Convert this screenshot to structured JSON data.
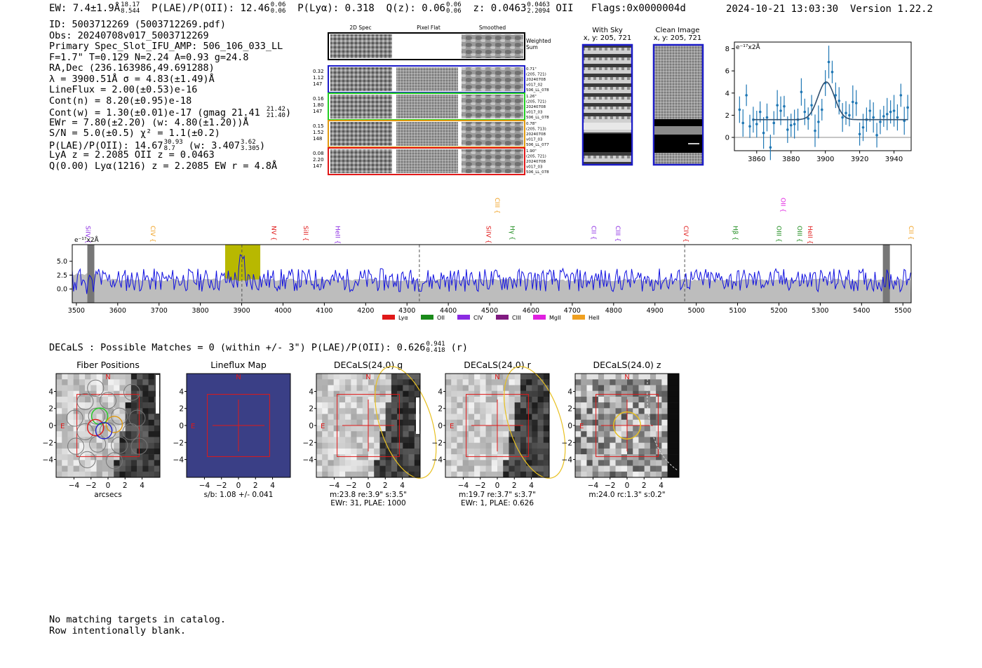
{
  "header": {
    "ew": "EW: 7.4±1.9Å",
    "ew_hi": "18.17",
    "ew_lo": "8.544",
    "plae_poii": "P(LAE)/P(OII): 12.46",
    "plae_hi": "0.06",
    "plae_lo": "0.06",
    "plya": "P(Lyα): 0.318",
    "qz": "Q(z): 0.06",
    "qz_hi": "0.06",
    "qz_lo": "0.06",
    "z": "z: 0.0463",
    "z_hi": "0.0463",
    "z_lo": "2.2094",
    "z_line": "OII",
    "flags": "Flags:0x0000004d",
    "datetime": "2024-10-21 13:03:30",
    "version": "Version 1.22.2"
  },
  "info": {
    "id": "ID: 5003712269 (5003712269.pdf)",
    "obs": "Obs: 20240708v017_5003712269",
    "primary": "Primary Spec_Slot_IFU_AMP: 506_106_033_LL",
    "fiber": "F=1.7\"  T=0.129  N=2.24  A=0.93  g=24.8",
    "radec": "RA,Dec (236.163986,49.691288)",
    "lambda": "λ = 3900.51Å  σ = 4.83(±1.49)Å",
    "lineflux": "LineFlux = 2.00(±0.53)e-16",
    "contn": "Cont(n) = 8.20(±0.95)e-18",
    "contw": "Cont(w) = 1.30(±0.01)e-17 (gmag 21.41",
    "contw_hi": "21.42",
    "contw_lo": "21.40",
    "ewr": "EWr = 7.80(±2.20) (w: 4.80(±1.20))Å",
    "sn": "S/N = 5.0(±0.5)  χ² = 1.1(±0.2)",
    "plae": "P(LAE)/P(OII): 14.67",
    "plae_hi": "30.93",
    "plae_lo": "8.7",
    "plae_w": "(w: 3.407",
    "plae_w_hi": "3.62",
    "plae_w_lo": "3.305",
    "lya_z": "LyA z = 2.2085  OII z = 0.0463",
    "q": "Q(0.00) Lyα(1216) z = 2.2085  EW r = 4.8Å"
  },
  "cutouts": {
    "col_titles": [
      "2D Spec",
      "Pixel Flat",
      "Smoothed"
    ],
    "weighted_sum": "Weighted Sum",
    "rows": [
      {
        "vals": [
          "0.32",
          "1.12",
          "147"
        ],
        "info": [
          "0.71\"",
          "(205, 721)",
          "20240708",
          "v017_02",
          "506_LL_078"
        ],
        "color": "#1c1cc8"
      },
      {
        "vals": [
          "0.16",
          "1.80",
          "147"
        ],
        "info": [
          "1.26\"",
          "(205, 721)",
          "20240708",
          "v017_03",
          "506_LL_078"
        ],
        "color": "#22cc22"
      },
      {
        "vals": [
          "0.15",
          "1.52",
          "148"
        ],
        "info": [
          "0.78\"",
          "(205, 713)",
          "20240708",
          "v017_03",
          "506_LL_077"
        ],
        "color": "#e09a10"
      },
      {
        "vals": [
          "0.08",
          "2.20",
          "147"
        ],
        "info": [
          "1.90\"",
          "(205, 721)",
          "20240708",
          "v017_03",
          "506_LL_078"
        ],
        "color": "#e01818"
      }
    ],
    "with_sky_title": "With Sky",
    "with_sky_xy": "x, y: 205, 721",
    "clean_title": "Clean Image",
    "clean_xy": "x, y: 205, 721"
  },
  "fit_plot": {
    "ylabel": "e⁻¹⁷x2Å",
    "xticks": [
      "3860",
      "3880",
      "3900",
      "3920",
      "3940"
    ],
    "yticks": [
      "8",
      "6",
      "4",
      "2",
      "0"
    ],
    "xlim": [
      3847,
      3950
    ],
    "ylim": [
      -1.2,
      8.6
    ],
    "points_x": [
      3850,
      3852,
      3854,
      3856,
      3858,
      3860,
      3862,
      3864,
      3866,
      3868,
      3870,
      3872,
      3874,
      3876,
      3878,
      3880,
      3882,
      3884,
      3886,
      3888,
      3890,
      3892,
      3894,
      3896,
      3898,
      3900,
      3902,
      3904,
      3906,
      3908,
      3910,
      3912,
      3914,
      3916,
      3918,
      3920,
      3922,
      3924,
      3926,
      3928,
      3930,
      3932,
      3934,
      3936,
      3938,
      3940,
      3942,
      3944,
      3946,
      3948
    ],
    "points_y": [
      2.5,
      1.3,
      3.8,
      1.0,
      1.6,
      1.2,
      2.3,
      0.4,
      1.8,
      -0.9,
      1.3,
      2.9,
      2.4,
      2.8,
      0.7,
      1.1,
      1.2,
      1.6,
      4.1,
      2.3,
      1.7,
      2.9,
      0.6,
      1.4,
      2.5,
      4.9,
      6.8,
      5.9,
      3.8,
      3.3,
      1.8,
      2.2,
      2.0,
      3.2,
      3.1,
      0.3,
      0.9,
      1.6,
      2.4,
      1.8,
      0.2,
      1.4,
      1.9,
      2.1,
      2.3,
      2.4,
      1.8,
      3.8,
      1.5,
      2.7
    ],
    "gauss_center": 3900.5,
    "gauss_sigma": 4.83,
    "gauss_amp": 3.4,
    "continuum": 1.6
  },
  "spectrum": {
    "ylabel": "e⁻¹⁷x2Å",
    "xticks": [
      "3500",
      "3600",
      "3700",
      "3800",
      "3900",
      "4000",
      "4100",
      "4200",
      "4300",
      "4400",
      "4500",
      "4600",
      "4700",
      "4800",
      "4900",
      "5000",
      "5100",
      "5200",
      "5300",
      "5400",
      "5500"
    ],
    "yticks": [
      "5.0",
      "2.5",
      "0.0"
    ],
    "xlim": [
      3490,
      5520
    ],
    "ylim": [
      -2.5,
      8.0
    ],
    "highlight": [
      3860,
      3945
    ],
    "dashed_lines": [
      3900.5,
      4330,
      4972
    ],
    "grey_bands": [
      3535,
      5460
    ],
    "line_labels": [
      {
        "name": "SiIV",
        "wave": 3518,
        "color": "#8b2be2",
        "tier": 1
      },
      {
        "name": "CIV",
        "wave": 3675,
        "color": "#f0a020",
        "tier": 1
      },
      {
        "name": "NV",
        "wave": 3968,
        "color": "#e01818",
        "tier": 1
      },
      {
        "name": "SiII",
        "wave": 4045,
        "color": "#e01818",
        "tier": 1
      },
      {
        "name": "HeII",
        "wave": 4122,
        "color": "#8b2be2",
        "tier": 1
      },
      {
        "name": "CIII",
        "wave": 4508,
        "color": "#f0a020",
        "tier": 0
      },
      {
        "name": "SiIV",
        "wave": 4487,
        "color": "#e01818",
        "tier": 1
      },
      {
        "name": "Hγ",
        "wave": 4545,
        "color": "#1a8a1a",
        "tier": 1
      },
      {
        "name": "CII",
        "wave": 4742,
        "color": "#8b2be2",
        "tier": 1
      },
      {
        "name": "CIII",
        "wave": 4800,
        "color": "#8b2be2",
        "tier": 1
      },
      {
        "name": "CIV",
        "wave": 4965,
        "color": "#e01818",
        "tier": 1
      },
      {
        "name": "Hβ",
        "wave": 5085,
        "color": "#1a8a1a",
        "tier": 1
      },
      {
        "name": "OII",
        "wave": 5200,
        "color": "#e020e0",
        "tier": 0
      },
      {
        "name": "OIII",
        "wave": 5190,
        "color": "#1a8a1a",
        "tier": 1
      },
      {
        "name": "OIII",
        "wave": 5240,
        "color": "#1a8a1a",
        "tier": 1
      },
      {
        "name": "HeII",
        "wave": 5265,
        "color": "#e01818",
        "tier": 1
      },
      {
        "name": "CII",
        "wave": 5510,
        "color": "#f0a020",
        "tier": 1
      }
    ],
    "legend": [
      {
        "name": "Lyα",
        "color": "#e01818"
      },
      {
        "name": "OII",
        "color": "#1a8a1a"
      },
      {
        "name": "CIV",
        "color": "#8b2be2"
      },
      {
        "name": "CIII",
        "color": "#801a80"
      },
      {
        "name": "MgII",
        "color": "#e020e0"
      },
      {
        "name": "HeII",
        "color": "#f0a020"
      }
    ]
  },
  "decals_line": {
    "text": "DECaLS : Possible Matches = 0 (within +/- 3\")  P(LAE)/P(OII): 0.626",
    "hi": "0.941",
    "lo": "0.418",
    "suffix": "(r)"
  },
  "panels": [
    {
      "title": "Fiber Positions",
      "caption1": "arcsecs",
      "caption2": ""
    },
    {
      "title": "Lineflux Map",
      "caption1": "s/b: 1.08 +/- 0.041",
      "caption2": ""
    },
    {
      "title": "DECaLS(24.0) g",
      "caption1": "m:23.8  re:3.9\"  s:3.5\"",
      "caption2": "EWr: 31, PLAE: 1000"
    },
    {
      "title": "DECaLS(24.0) r",
      "caption1": "m:19.7  re:3.7\"  s:3.7\"",
      "caption2": "EWr: 1, PLAE: 0.626"
    },
    {
      "title": "DECaLS(24.0) z",
      "caption1": "m:24.0  rc:1.3\"  s:0.2\"",
      "caption2": ""
    }
  ],
  "panel_ticks": [
    "4",
    "2",
    "0",
    "−2",
    "−4"
  ],
  "panel_xticks": [
    "−4",
    "−2",
    "0",
    "2",
    "4"
  ],
  "compass": {
    "n": "N",
    "e": "E"
  },
  "bottom_note": [
    "No matching targets in catalog.",
    "Row intentionally blank."
  ],
  "colors": {
    "spectrum": "#1010e0",
    "highlight": "#b8b800",
    "fit": "#1f77b4",
    "box": "#e01818",
    "lineflux_bg": "#3a3f86"
  }
}
